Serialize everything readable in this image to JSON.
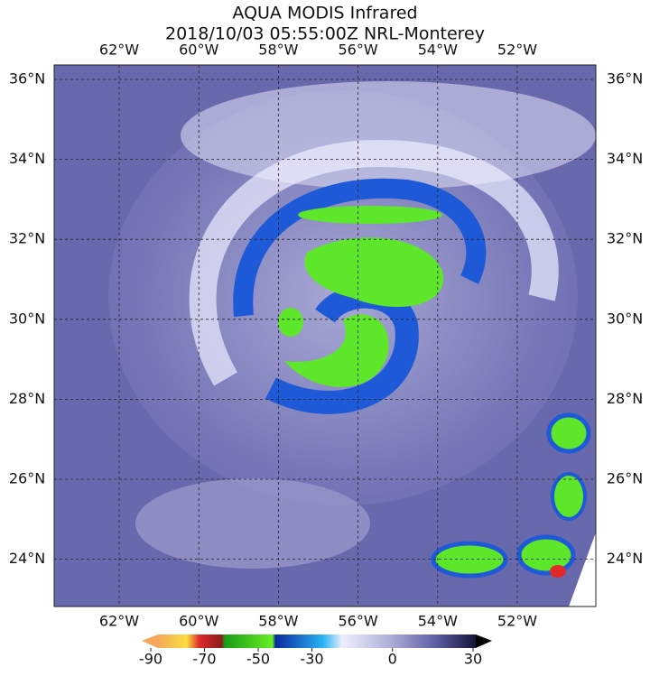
{
  "header": {
    "title": "AQUA MODIS Infrared",
    "subtitle": "2018/10/03 05:55:00Z NRL-Monterey"
  },
  "map": {
    "longitudes": [
      "62°W",
      "60°W",
      "58°W",
      "56°W",
      "54°W",
      "52°W"
    ],
    "latitudes": [
      "36°N",
      "34°N",
      "32°N",
      "30°N",
      "28°N",
      "26°N",
      "24°N"
    ]
  },
  "colorbar": {
    "ticks": [
      -90,
      -70,
      -50,
      -30,
      0,
      30
    ]
  }
}
